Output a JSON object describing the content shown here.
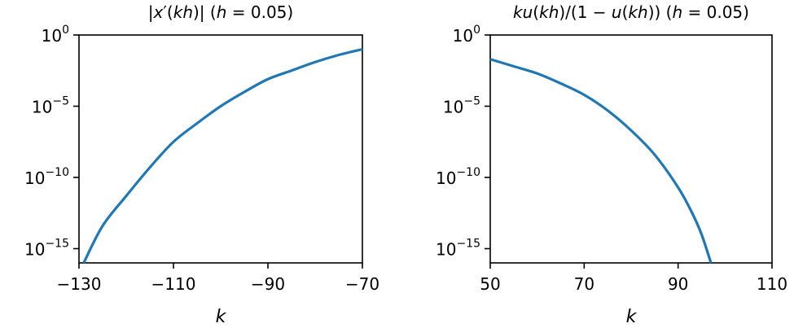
{
  "chart_data": [
    {
      "type": "line",
      "title": "|x′(kh)| (h = 0.05)",
      "xlabel": "k",
      "ylabel": "",
      "yscale": "log",
      "xlim": [
        -130,
        -70
      ],
      "ylim_log10": [
        -16,
        0
      ],
      "xticks": [
        -130,
        -110,
        -90,
        -70
      ],
      "xtick_labels": [
        "−130",
        "−110",
        "−90",
        "−70"
      ],
      "yticks_exp": [
        0,
        -5,
        -10,
        -15
      ],
      "grid": false,
      "legend": null,
      "series": [
        {
          "name": "|x'(kh)|",
          "color": "#1f77b4",
          "x": [
            -129,
            -125,
            -120,
            -115,
            -110,
            -105,
            -100,
            -95,
            -90,
            -85,
            -80,
            -75,
            -70
          ],
          "log10_y": [
            -16.0,
            -13.4,
            -11.3,
            -9.3,
            -7.5,
            -6.2,
            -5.0,
            -4.0,
            -3.1,
            -2.5,
            -1.9,
            -1.4,
            -1.0
          ]
        }
      ]
    },
    {
      "type": "line",
      "title": "ku(kh)/(1 − u(kh)) (h = 0.05)",
      "xlabel": "k",
      "ylabel": "",
      "yscale": "log",
      "xlim": [
        50,
        110
      ],
      "ylim_log10": [
        -16,
        0
      ],
      "xticks": [
        50,
        70,
        90,
        110
      ],
      "xtick_labels": [
        "50",
        "70",
        "90",
        "110"
      ],
      "yticks_exp": [
        0,
        -5,
        -10,
        -15
      ],
      "grid": false,
      "legend": null,
      "series": [
        {
          "name": "ku(kh)/(1-u(kh))",
          "color": "#1f77b4",
          "x": [
            50,
            55,
            60,
            65,
            70,
            75,
            80,
            85,
            90,
            93,
            95,
            97
          ],
          "log10_y": [
            -1.7,
            -2.2,
            -2.7,
            -3.4,
            -4.2,
            -5.3,
            -6.7,
            -8.4,
            -10.7,
            -12.5,
            -14.0,
            -16.0
          ]
        }
      ]
    }
  ],
  "panels": [
    {
      "title_parts": [
        "|",
        "x",
        "′(",
        "kh",
        ")| (",
        "h",
        " = 0.05)"
      ]
    },
    {
      "title_parts": [
        "ku",
        "(",
        "kh",
        ")/(1 − ",
        "u",
        "(",
        "kh",
        ")) (",
        "h",
        " = 0.05)"
      ]
    }
  ],
  "ytick_base": "10",
  "ytick_exps": [
    "0",
    "−5",
    "−10",
    "−15"
  ]
}
